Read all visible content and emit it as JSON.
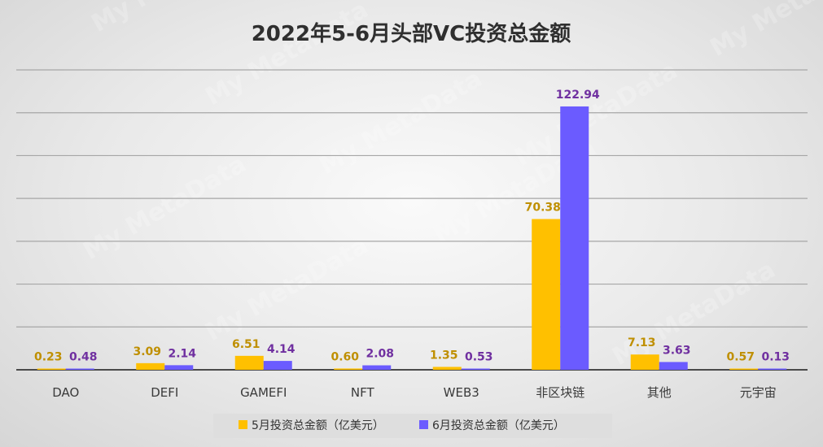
{
  "chart_data": {
    "type": "bar",
    "title": "2022年5-6月头部VC投资总金额",
    "categories": [
      "DAO",
      "DEFI",
      "GAMEFI",
      "NFT",
      "WEB3",
      "非区块链",
      "其他",
      "元宇宙"
    ],
    "series": [
      {
        "name": "5月投资总金额（亿美元）",
        "values": [
          0.23,
          3.09,
          6.51,
          0.6,
          1.35,
          70.38,
          7.13,
          0.57
        ],
        "labels": [
          "0.23",
          "3.09",
          "6.51",
          "0.60",
          "1.35",
          "70.38",
          "7.13",
          "0.57"
        ],
        "color": "#FFC000",
        "label_color": "#BF8F00"
      },
      {
        "name": "6月投资总金额（亿美元）",
        "values": [
          0.48,
          2.14,
          4.14,
          2.08,
          0.53,
          122.94,
          3.63,
          0.13
        ],
        "labels": [
          "0.48",
          "2.14",
          "4.14",
          "2.08",
          "0.53",
          "122.94",
          "3.63",
          "0.13"
        ],
        "color": "#6B5BFF",
        "label_color": "#7030A0"
      }
    ],
    "ylim": [
      0,
      140
    ],
    "grid": true,
    "legend_position": "bottom",
    "watermark": "My MetaData"
  }
}
